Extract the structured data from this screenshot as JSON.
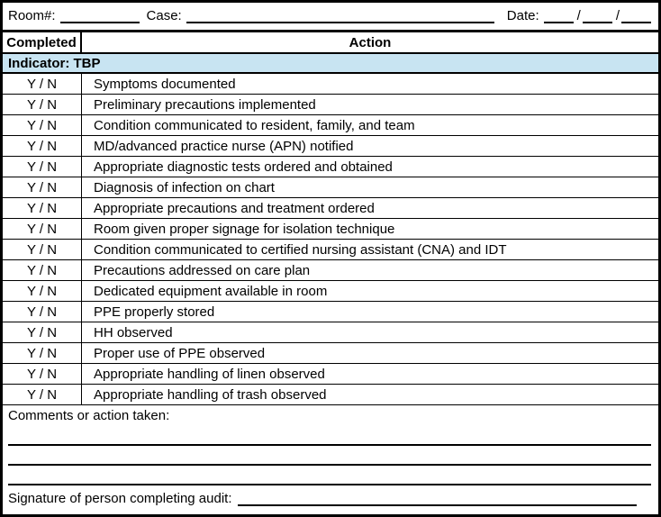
{
  "form_header": {
    "room_label": "Room#:",
    "case_label": "Case:",
    "date_label": "Date:",
    "date_separator": "/"
  },
  "table": {
    "columns": [
      "Completed",
      "Action"
    ],
    "indicator_label": "Indicator: TBP",
    "completed_value": "Y / N",
    "rows": [
      "Symptoms documented",
      "Preliminary precautions implemented",
      "Condition communicated to resident, family, and team",
      "MD/advanced practice nurse (APN) notified",
      "Appropriate diagnostic tests ordered and obtained",
      "Diagnosis of infection on chart",
      "Appropriate precautions and treatment ordered",
      "Room given proper signage for isolation technique",
      "Condition communicated to certified nursing assistant (CNA) and IDT",
      "Precautions addressed on care plan",
      "Dedicated equipment available in room",
      "PPE properly stored",
      "HH observed",
      "Proper use of PPE observed",
      "Appropriate handling of linen observed",
      "Appropriate handling of trash observed"
    ]
  },
  "footer": {
    "comments_label": "Comments or action taken:",
    "signature_label": "Signature of person completing audit:"
  },
  "colors": {
    "indicator_bg": "#C8E4F2",
    "border": "#000000"
  }
}
